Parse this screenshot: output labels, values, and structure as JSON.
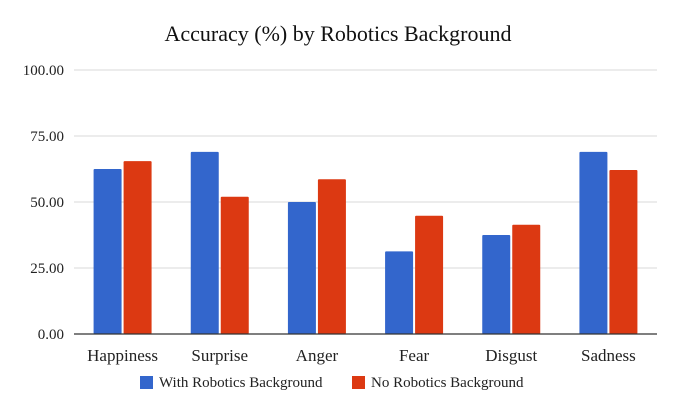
{
  "chart_data": {
    "type": "bar",
    "title": "Accuracy (%) by Robotics Background",
    "xlabel": "",
    "ylabel": "",
    "categories": [
      "Happiness",
      "Surprise",
      "Anger",
      "Fear",
      "Disgust",
      "Sadness"
    ],
    "series": [
      {
        "name": "With Robotics Background",
        "color": "#3366cc",
        "values": [
          62.5,
          69.0,
          50.0,
          31.3,
          37.5,
          69.0
        ]
      },
      {
        "name": "No Robotics Background",
        "color": "#dc3912",
        "values": [
          65.5,
          52.0,
          58.6,
          44.8,
          41.4,
          62.1
        ]
      }
    ],
    "yticks": [
      "0.00",
      "25.00",
      "50.00",
      "75.00",
      "100.00"
    ],
    "ylim": [
      0,
      100
    ],
    "grid": true,
    "legend_position": "bottom"
  }
}
